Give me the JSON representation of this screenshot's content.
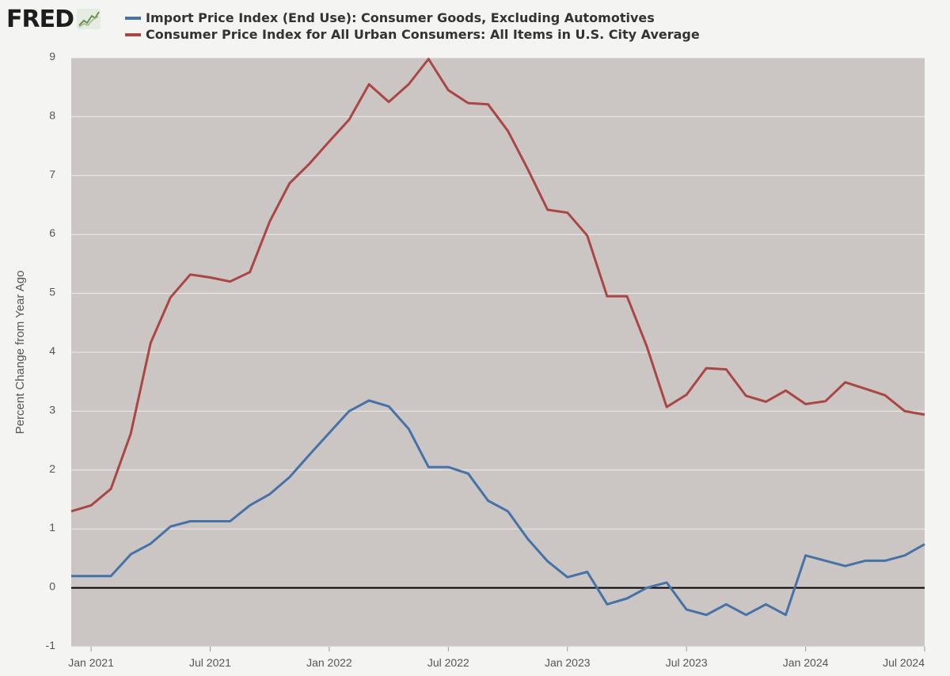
{
  "app": {
    "logo_text": "FRED"
  },
  "chart_data": {
    "type": "line",
    "title": "",
    "xlabel": "",
    "ylabel": "Percent Change from Year Ago",
    "ylim": [
      -1,
      9
    ],
    "yticks": [
      "-1",
      "0",
      "1",
      "2",
      "3",
      "4",
      "5",
      "6",
      "7",
      "8",
      "9"
    ],
    "x_start": "Jan 2021",
    "x_end": "Jul 2024",
    "x_tick_labels": [
      "Jan 2021",
      "Jul 2021",
      "Jan 2022",
      "Jul 2022",
      "Jan 2023",
      "Jul 2023",
      "Jan 2024",
      "Jul 2024"
    ],
    "x": [
      "Dec 2020",
      "Jan 2021",
      "Feb 2021",
      "Mar 2021",
      "Apr 2021",
      "May 2021",
      "Jun 2021",
      "Jul 2021",
      "Aug 2021",
      "Sep 2021",
      "Oct 2021",
      "Nov 2021",
      "Dec 2021",
      "Jan 2022",
      "Feb 2022",
      "Mar 2022",
      "Apr 2022",
      "May 2022",
      "Jun 2022",
      "Jul 2022",
      "Aug 2022",
      "Sep 2022",
      "Oct 2022",
      "Nov 2022",
      "Dec 2022",
      "Jan 2023",
      "Feb 2023",
      "Mar 2023",
      "Apr 2023",
      "May 2023",
      "Jun 2023",
      "Jul 2023",
      "Aug 2023",
      "Sep 2023",
      "Oct 2023",
      "Nov 2023",
      "Dec 2023",
      "Jan 2024",
      "Feb 2024",
      "Mar 2024",
      "Apr 2024",
      "May 2024",
      "Jun 2024",
      "Jul 2024"
    ],
    "series": [
      {
        "name": "Import Price Index (End Use): Consumer Goods, Excluding Automotives",
        "color": "#4572a7",
        "values": [
          0.2,
          0.2,
          0.2,
          0.57,
          0.75,
          1.04,
          1.13,
          1.13,
          1.13,
          1.4,
          1.59,
          1.88,
          2.26,
          2.63,
          3.0,
          3.18,
          3.08,
          2.7,
          2.05,
          2.05,
          1.94,
          1.48,
          1.3,
          0.83,
          0.45,
          0.18,
          0.27,
          -0.28,
          -0.18,
          0.0,
          0.09,
          -0.37,
          -0.46,
          -0.28,
          -0.46,
          -0.28,
          -0.46,
          0.55,
          0.46,
          0.37,
          0.46,
          0.46,
          0.55,
          0.74
        ]
      },
      {
        "name": "Consumer Price Index for All Urban Consumers: All Items in U.S. City Average",
        "color": "#aa4643",
        "values": [
          1.3,
          1.4,
          1.68,
          2.62,
          4.16,
          4.93,
          5.32,
          5.27,
          5.2,
          5.36,
          6.22,
          6.87,
          7.2,
          7.58,
          7.95,
          8.55,
          8.25,
          8.55,
          8.98,
          8.45,
          8.23,
          8.21,
          7.76,
          7.11,
          6.42,
          6.37,
          5.98,
          4.95,
          4.95,
          4.1,
          3.07,
          3.28,
          3.73,
          3.71,
          3.26,
          3.16,
          3.35,
          3.12,
          3.17,
          3.49,
          3.38,
          3.27,
          3.0,
          2.94
        ]
      }
    ],
    "zero_line": true,
    "grid": true,
    "legend_position": "top-left"
  },
  "colors": {
    "plot_background": "#cbc5c3",
    "page_background": "#f4f4f3",
    "grid": "#ececec",
    "zero_line": "#000000"
  }
}
